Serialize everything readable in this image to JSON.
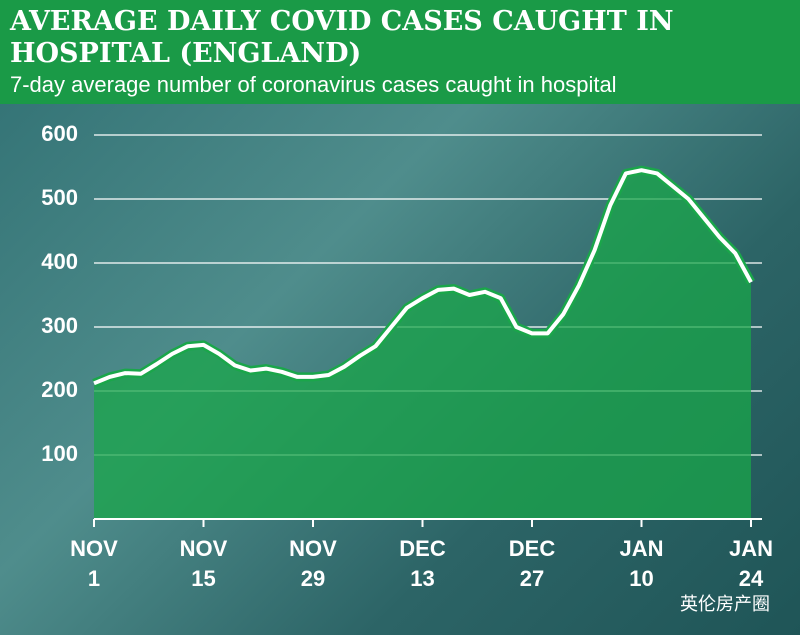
{
  "chart_data": {
    "type": "area-line",
    "title": "AVERAGE DAILY COVID CASES CAUGHT IN HOSPITAL (ENGLAND)",
    "subtitle": "7-day average number of coronavirus cases caught in hospital",
    "categories": [
      "NOV 1",
      null,
      null,
      null,
      null,
      null,
      null,
      "NOV 15",
      null,
      null,
      null,
      null,
      null,
      null,
      "NOV 29",
      null,
      null,
      null,
      null,
      null,
      null,
      "DEC 13",
      null,
      null,
      null,
      null,
      null,
      null,
      "DEC 27",
      null,
      null,
      null,
      null,
      null,
      null,
      "JAN 10",
      null,
      null,
      null,
      null,
      null,
      null,
      "JAN 24"
    ],
    "values": [
      212,
      222,
      228,
      227,
      242,
      258,
      270,
      272,
      258,
      240,
      232,
      235,
      230,
      222,
      222,
      225,
      238,
      255,
      270,
      300,
      330,
      345,
      358,
      360,
      350,
      355,
      345,
      300,
      290,
      290,
      320,
      365,
      420,
      490,
      540,
      545,
      540,
      520,
      500,
      470,
      440,
      415,
      370
    ],
    "color": "#1aa64a",
    "ylim": [
      0,
      600
    ],
    "yticks": [
      100,
      200,
      300,
      400,
      500,
      600
    ],
    "grid": true,
    "watermark": "英伦房产圈"
  }
}
